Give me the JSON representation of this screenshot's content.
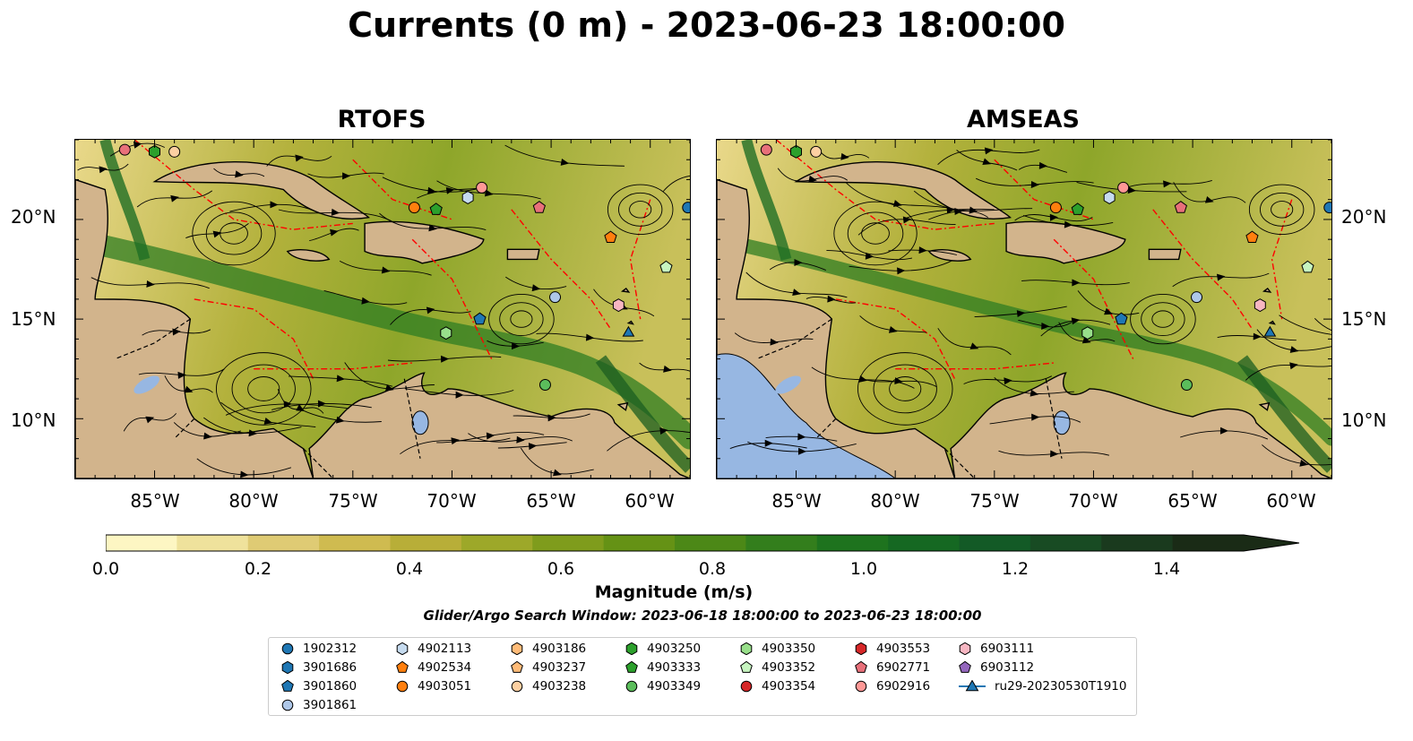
{
  "title": "Currents (0 m) - 2023-06-23 18:00:00",
  "panels": [
    {
      "title": "RTOFS"
    },
    {
      "title": "AMSEAS"
    }
  ],
  "lat_labels": [
    "20°N",
    "15°N",
    "10°N"
  ],
  "lon_labels": [
    "85°W",
    "80°W",
    "75°W",
    "70°W",
    "65°W",
    "60°W"
  ],
  "colorbar": {
    "label": "Magnitude (m/s)",
    "ticks": [
      "0.0",
      "0.2",
      "0.4",
      "0.6",
      "0.8",
      "1.0",
      "1.2",
      "1.4"
    ],
    "range": [
      0,
      1.5
    ],
    "extend": "max",
    "colors": [
      "#fdf6c3",
      "#efe29c",
      "#dfcb74",
      "#cfbb50",
      "#b8ae38",
      "#9da829",
      "#7f9c1c",
      "#659215",
      "#4c8817",
      "#337e1c",
      "#1e731e",
      "#156822",
      "#135a26",
      "#184b23",
      "#1a3a1e",
      "#1a2b16"
    ]
  },
  "search_window": "Glider/Argo Search Window: 2023-06-18 18:00:00 to 2023-06-23 18:00:00",
  "legend": [
    {
      "label": "1902312",
      "marker": "circle",
      "color": "#1f77b4"
    },
    {
      "label": "3901686",
      "marker": "hexagon",
      "color": "#1f77b4"
    },
    {
      "label": "3901860",
      "marker": "pentagon",
      "color": "#1f77b4"
    },
    {
      "label": "3901861",
      "marker": "circle",
      "color": "#aec7e8"
    },
    {
      "label": "4902113",
      "marker": "hexagon",
      "color": "#c6dbef"
    },
    {
      "label": "4902534",
      "marker": "pentagon",
      "color": "#ff7f0e"
    },
    {
      "label": "4903051",
      "marker": "circle",
      "color": "#ff7f0e"
    },
    {
      "label": "4903186",
      "marker": "hexagon",
      "color": "#ffbb78"
    },
    {
      "label": "4903237",
      "marker": "pentagon",
      "color": "#ffbb78"
    },
    {
      "label": "4903238",
      "marker": "circle",
      "color": "#fdd0a2"
    },
    {
      "label": "4903250",
      "marker": "hexagon",
      "color": "#2ca02c"
    },
    {
      "label": "4903333",
      "marker": "pentagon",
      "color": "#2ca02c"
    },
    {
      "label": "4903349",
      "marker": "circle",
      "color": "#5bbd5b"
    },
    {
      "label": "4903350",
      "marker": "hexagon",
      "color": "#98df8a"
    },
    {
      "label": "4903352",
      "marker": "pentagon",
      "color": "#c7f5c0"
    },
    {
      "label": "4903354",
      "marker": "circle",
      "color": "#d62728"
    },
    {
      "label": "4903553",
      "marker": "hexagon",
      "color": "#d62728"
    },
    {
      "label": "6902771",
      "marker": "pentagon",
      "color": "#e8707a"
    },
    {
      "label": "6902916",
      "marker": "circle",
      "color": "#ff9896"
    },
    {
      "label": "6903111",
      "marker": "hexagon",
      "color": "#f7b6c2"
    },
    {
      "label": "6903112",
      "marker": "pentagon",
      "color": "#9467bd"
    },
    {
      "label": "ru29-20230530T1910",
      "marker": "triangle-line",
      "color": "#1f77b4"
    }
  ],
  "floats": [
    {
      "lon": -86.5,
      "lat": 23.5,
      "color": "#e8707a",
      "marker": "circle"
    },
    {
      "lon": -85.0,
      "lat": 23.4,
      "color": "#2ca02c",
      "marker": "hexagon"
    },
    {
      "lon": -84.0,
      "lat": 23.4,
      "color": "#fdd0a2",
      "marker": "circle"
    },
    {
      "lon": -68.5,
      "lat": 21.6,
      "color": "#ff9896",
      "marker": "circle"
    },
    {
      "lon": -69.2,
      "lat": 21.1,
      "color": "#c6dbef",
      "marker": "hexagon"
    },
    {
      "lon": -71.9,
      "lat": 20.6,
      "color": "#ff7f0e",
      "marker": "circle"
    },
    {
      "lon": -70.8,
      "lat": 20.5,
      "color": "#2ca02c",
      "marker": "pentagon"
    },
    {
      "lon": -65.6,
      "lat": 20.6,
      "color": "#e8707a",
      "marker": "pentagon"
    },
    {
      "lon": -58.1,
      "lat": 20.6,
      "color": "#1f77b4",
      "marker": "circle"
    },
    {
      "lon": -62.0,
      "lat": 19.1,
      "color": "#ff7f0e",
      "marker": "pentagon"
    },
    {
      "lon": -59.2,
      "lat": 17.6,
      "color": "#c7f5c0",
      "marker": "pentagon"
    },
    {
      "lon": -64.8,
      "lat": 16.1,
      "color": "#aec7e8",
      "marker": "circle"
    },
    {
      "lon": -61.6,
      "lat": 15.7,
      "color": "#f7b6c2",
      "marker": "hexagon"
    },
    {
      "lon": -68.6,
      "lat": 15.0,
      "color": "#1f77b4",
      "marker": "pentagon"
    },
    {
      "lon": -70.3,
      "lat": 14.3,
      "color": "#98df8a",
      "marker": "hexagon"
    },
    {
      "lon": -61.1,
      "lat": 14.3,
      "color": "#1f77b4",
      "marker": "triangle"
    },
    {
      "lon": -65.3,
      "lat": 11.7,
      "color": "#5bbd5b",
      "marker": "circle"
    }
  ]
}
